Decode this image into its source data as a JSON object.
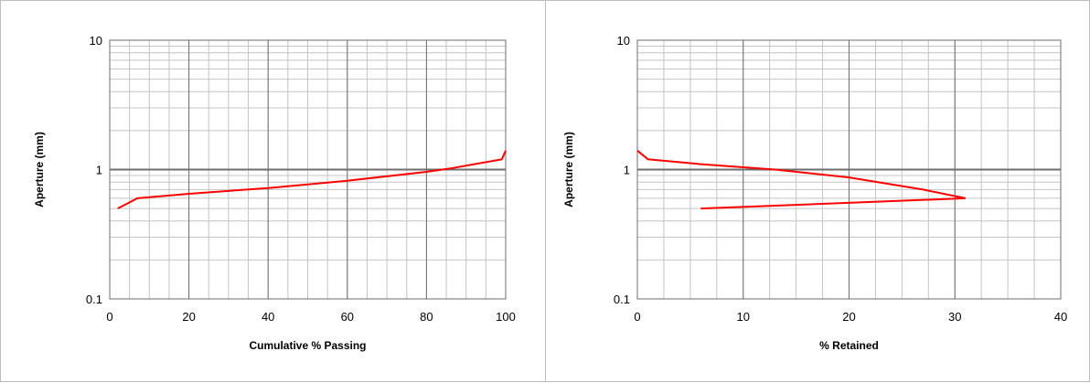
{
  "chart_data": [
    {
      "type": "line",
      "xlabel": "Cumulative % Passing",
      "ylabel": "Aperture (mm)",
      "xlim": [
        0,
        100
      ],
      "ylim": [
        0.1,
        10
      ],
      "y_scale": "log",
      "x_ticks": [
        "0",
        "20",
        "40",
        "60",
        "80",
        "100"
      ],
      "y_ticks": [
        "0.1",
        "1",
        "10"
      ],
      "grid": true,
      "line_color": "#ff0000",
      "series": [
        {
          "x": [
            2,
            7,
            20,
            40,
            60,
            80,
            86,
            99,
            100
          ],
          "y": [
            0.5,
            0.6,
            0.65,
            0.72,
            0.82,
            0.96,
            1.02,
            1.2,
            1.4
          ]
        }
      ]
    },
    {
      "type": "line",
      "xlabel": "% Retained",
      "ylabel": "Aperture (mm)",
      "xlim": [
        0,
        40
      ],
      "ylim": [
        0.1,
        10
      ],
      "y_scale": "log",
      "x_ticks": [
        "0",
        "10",
        "20",
        "30",
        "40"
      ],
      "y_ticks": [
        "0.1",
        "1",
        "10"
      ],
      "grid": true,
      "line_color": "#ff0000",
      "series": [
        {
          "x": [
            0,
            1,
            6,
            13,
            20,
            27,
            31,
            6
          ],
          "y": [
            1.4,
            1.2,
            1.1,
            1.0,
            0.87,
            0.7,
            0.6,
            0.5
          ]
        }
      ]
    }
  ]
}
